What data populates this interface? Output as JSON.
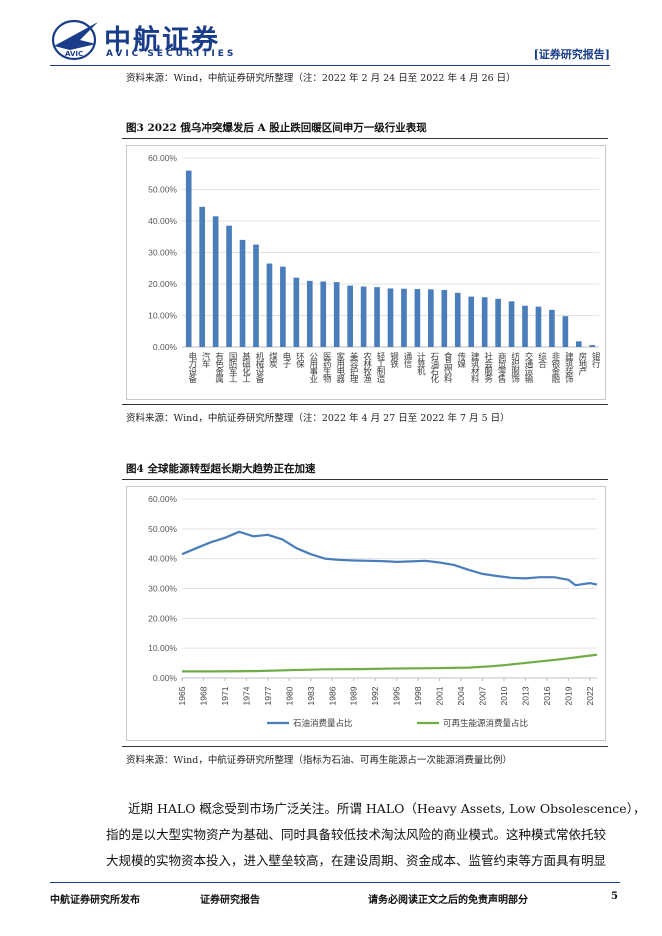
{
  "header": {
    "logo_cn": "中航证券",
    "logo_en": "AVIC SECURITIES",
    "logo_badge": "AVIC",
    "report_tag": "[证券研究报告]"
  },
  "top_source": "资料来源：Wind，中航证券研究所整理（注：2022 年 2 月 24 日至 2022 年 4 月 26 日）",
  "figure3": {
    "title": "图3  2022 俄乌冲突爆发后 A 股止跌回暖区间申万一级行业表现",
    "source": "资料来源：Wind，中航证券研究所整理（注：2022 年 4 月 27 日至 2022 年 7 月 5 日）",
    "chart_data": {
      "type": "bar",
      "title": "",
      "xlabel": "",
      "ylabel": "",
      "ylim": [
        0,
        60
      ],
      "yticks": [
        "60.00%",
        "50.00%",
        "40.00%",
        "30.00%",
        "20.00%",
        "10.00%",
        "0.00%"
      ],
      "grid": true,
      "categories": [
        "电力设备",
        "汽车",
        "有色金属",
        "国防军工",
        "基础化工",
        "机械设备",
        "煤炭",
        "电子",
        "环保",
        "公用事业",
        "医药生物",
        "家用电器",
        "美容护理",
        "农林牧渔",
        "轻工制造",
        "钢铁",
        "通信",
        "计算机",
        "石油石化",
        "食品饮料",
        "传媒",
        "建筑材料",
        "社会服务",
        "商贸零售",
        "纺织服饰",
        "交通运输",
        "综合",
        "非银金融",
        "建筑装饰",
        "房地产",
        "银行"
      ],
      "values": [
        56.0,
        44.5,
        41.5,
        38.5,
        34.0,
        32.5,
        26.5,
        25.5,
        22.0,
        21.0,
        20.8,
        20.6,
        19.5,
        19.2,
        19.0,
        18.6,
        18.5,
        18.4,
        18.3,
        18.1,
        17.2,
        16.0,
        15.8,
        15.3,
        14.5,
        13.1,
        12.8,
        11.8,
        9.8,
        1.8,
        0.6
      ],
      "color": "#4a7ebb"
    }
  },
  "figure4": {
    "title": "图4  全球能源转型超长期大趋势正在加速",
    "source": "资料来源：Wind，中航证券研究所整理（指标为石油、可再生能源占一次能源消费量比例）",
    "chart_data": {
      "type": "line",
      "title": "",
      "xlabel": "",
      "ylabel": "",
      "ylim": [
        0,
        60
      ],
      "yticks": [
        "60.00%",
        "50.00%",
        "40.00%",
        "30.00%",
        "20.00%",
        "10.00%",
        "0.00%"
      ],
      "xlim": [
        1965,
        2023
      ],
      "xticks": [
        1965,
        1968,
        1971,
        1974,
        1977,
        1980,
        1983,
        1986,
        1989,
        1992,
        1995,
        1998,
        2001,
        2004,
        2007,
        2010,
        2013,
        2016,
        2019,
        2022
      ],
      "grid": true,
      "legend": "bottom",
      "series": [
        {
          "name": "石油消费量占比",
          "color": "#4a7ebb",
          "x": [
            1965,
            1967,
            1969,
            1971,
            1973,
            1975,
            1977,
            1979,
            1981,
            1983,
            1985,
            1987,
            1989,
            1991,
            1993,
            1995,
            1997,
            1999,
            2001,
            2003,
            2005,
            2007,
            2009,
            2011,
            2013,
            2015,
            2017,
            2019,
            2020,
            2022,
            2023
          ],
          "y": [
            41.5,
            43.5,
            45.5,
            47.0,
            49.0,
            47.5,
            48.0,
            46.5,
            43.5,
            41.5,
            40.0,
            39.6,
            39.4,
            39.3,
            39.2,
            38.9,
            39.1,
            39.3,
            38.7,
            37.9,
            36.3,
            34.9,
            34.2,
            33.6,
            33.4,
            33.8,
            33.8,
            32.9,
            31.1,
            31.8,
            31.3
          ]
        },
        {
          "name": "可再生能源消费量占比",
          "color": "#70ad47",
          "x": [
            1965,
            1970,
            1975,
            1980,
            1985,
            1990,
            1995,
            2000,
            2005,
            2008,
            2010,
            2012,
            2014,
            2016,
            2018,
            2020,
            2022,
            2023
          ],
          "y": [
            2.2,
            2.2,
            2.3,
            2.6,
            2.9,
            3.0,
            3.2,
            3.3,
            3.5,
            3.9,
            4.3,
            4.8,
            5.3,
            5.8,
            6.3,
            6.9,
            7.5,
            7.8
          ]
        }
      ]
    }
  },
  "body_text": {
    "line1": "近期 HALO 概念受到市场广泛关注。所谓 HALO（Heavy Assets, Low Obsolescence），",
    "line2": "指的是以大型实物资产为基础、同时具备较低技术淘汰风险的商业模式。这种模式常依托较",
    "line3": "大规模的实物资本投入，进入壁垒较高，在建设周期、资金成本、监管约束等方面具有明显"
  },
  "footer": {
    "publisher": "中航证券研究所发布",
    "doc_type": "证券研究报告",
    "disclaimer": "请务必阅读正文之后的免责声明部分",
    "page_number": "5"
  }
}
